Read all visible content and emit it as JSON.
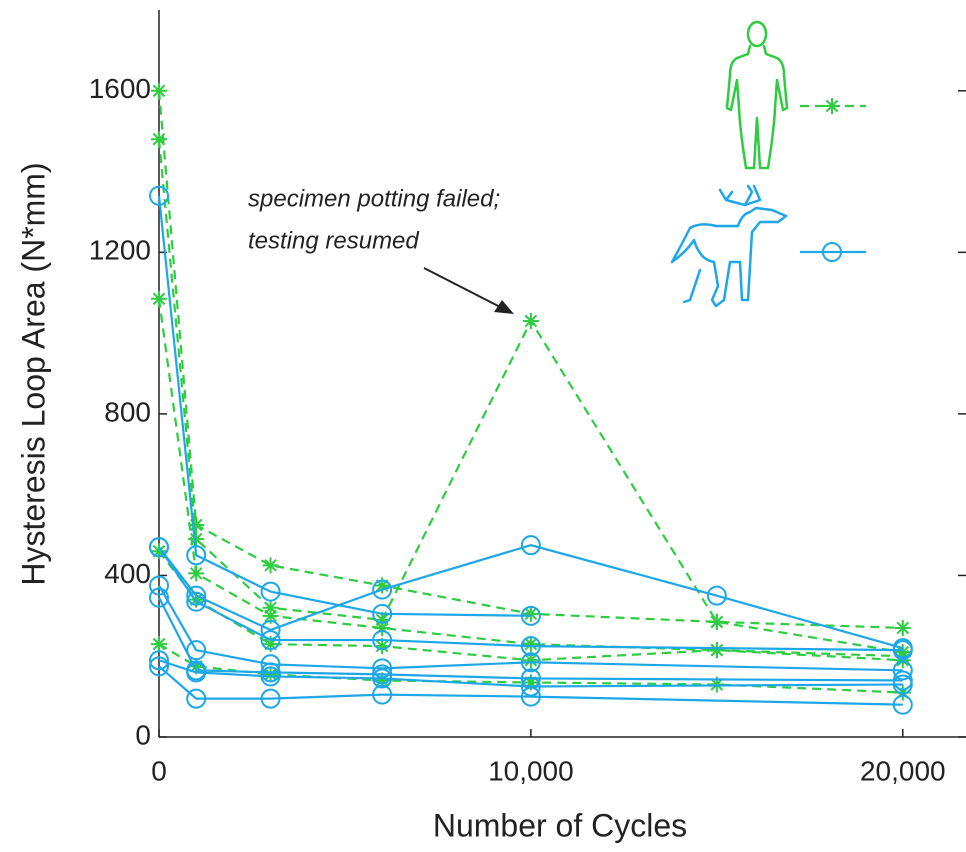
{
  "chart_data": {
    "type": "line",
    "x_label": "Number of Cycles",
    "y_label": "Hysteresis Loop Area (N*mm)",
    "annotation": [
      "specimen potting failed;",
      "testing resumed"
    ],
    "xlim": [
      0,
      21700
    ],
    "ylim": [
      0,
      1800
    ],
    "xticks": [
      0,
      {
        "value": 10000,
        "label": "10,000"
      },
      {
        "value": 20000,
        "label": "20,000"
      }
    ],
    "yticks": [
      0,
      400,
      800,
      1200,
      1600
    ],
    "series": [
      {
        "color": "#2ecc40",
        "marker": "asterisk",
        "dashed": true,
        "x": [
          0,
          1000,
          3000,
          6000,
          10000,
          15000,
          20000
        ],
        "values": [
          1600,
          525,
          425,
          375,
          305,
          285,
          270
        ]
      },
      {
        "color": "#2ecc40",
        "marker": "asterisk",
        "dashed": true,
        "x": [
          0,
          1000,
          3000,
          6000,
          10000,
          15000,
          20000
        ],
        "values": [
          1480,
          490,
          320,
          290,
          1030,
          285,
          210
        ]
      },
      {
        "color": "#2ecc40",
        "marker": "asterisk",
        "dashed": true,
        "x": [
          0,
          1000,
          3000,
          6000,
          10000,
          15000,
          20000
        ],
        "values": [
          1085,
          405,
          300,
          270,
          230,
          215,
          200
        ]
      },
      {
        "color": "#2ecc40",
        "marker": "asterisk",
        "dashed": true,
        "x": [
          0,
          1000,
          3000,
          6000,
          10000,
          15000,
          20000
        ],
        "values": [
          460,
          340,
          230,
          225,
          190,
          215,
          190
        ]
      },
      {
        "color": "#2ecc40",
        "marker": "asterisk",
        "dashed": true,
        "x": [
          0,
          1000,
          3000,
          6000,
          10000,
          15000,
          20000
        ],
        "values": [
          230,
          175,
          155,
          140,
          135,
          130,
          110
        ]
      },
      {
        "color": "#1ea7e8",
        "marker": "circle",
        "dashed": false,
        "x": [
          0,
          1000,
          3000,
          6000,
          10000
        ],
        "values": [
          1340,
          450,
          360,
          305,
          300
        ]
      },
      {
        "color": "#1ea7e8",
        "marker": "circle",
        "dashed": false,
        "x": [
          0,
          1000,
          3000,
          6000,
          10000,
          15000,
          20000
        ],
        "values": [
          470,
          350,
          265,
          365,
          475,
          350,
          220
        ]
      },
      {
        "color": "#1ea7e8",
        "marker": "circle",
        "dashed": false,
        "x": [
          0,
          1000,
          3000,
          6000,
          10000,
          20000
        ],
        "values": [
          470,
          335,
          240,
          240,
          225,
          215
        ]
      },
      {
        "color": "#1ea7e8",
        "marker": "circle",
        "dashed": false,
        "x": [
          0,
          1000,
          3000,
          6000,
          10000,
          20000
        ],
        "values": [
          375,
          215,
          180,
          170,
          185,
          165
        ]
      },
      {
        "color": "#1ea7e8",
        "marker": "circle",
        "dashed": false,
        "x": [
          0,
          1000,
          3000,
          6000,
          10000,
          20000
        ],
        "values": [
          345,
          165,
          160,
          155,
          145,
          140
        ]
      },
      {
        "color": "#1ea7e8",
        "marker": "circle",
        "dashed": false,
        "x": [
          0,
          1000,
          3000,
          6000,
          10000,
          20000
        ],
        "values": [
          190,
          160,
          150,
          145,
          125,
          130
        ]
      },
      {
        "color": "#1ea7e8",
        "marker": "circle",
        "dashed": false,
        "x": [
          0,
          1000,
          3000,
          6000,
          10000,
          20000
        ],
        "values": [
          175,
          95,
          95,
          105,
          100,
          80
        ]
      }
    ]
  }
}
